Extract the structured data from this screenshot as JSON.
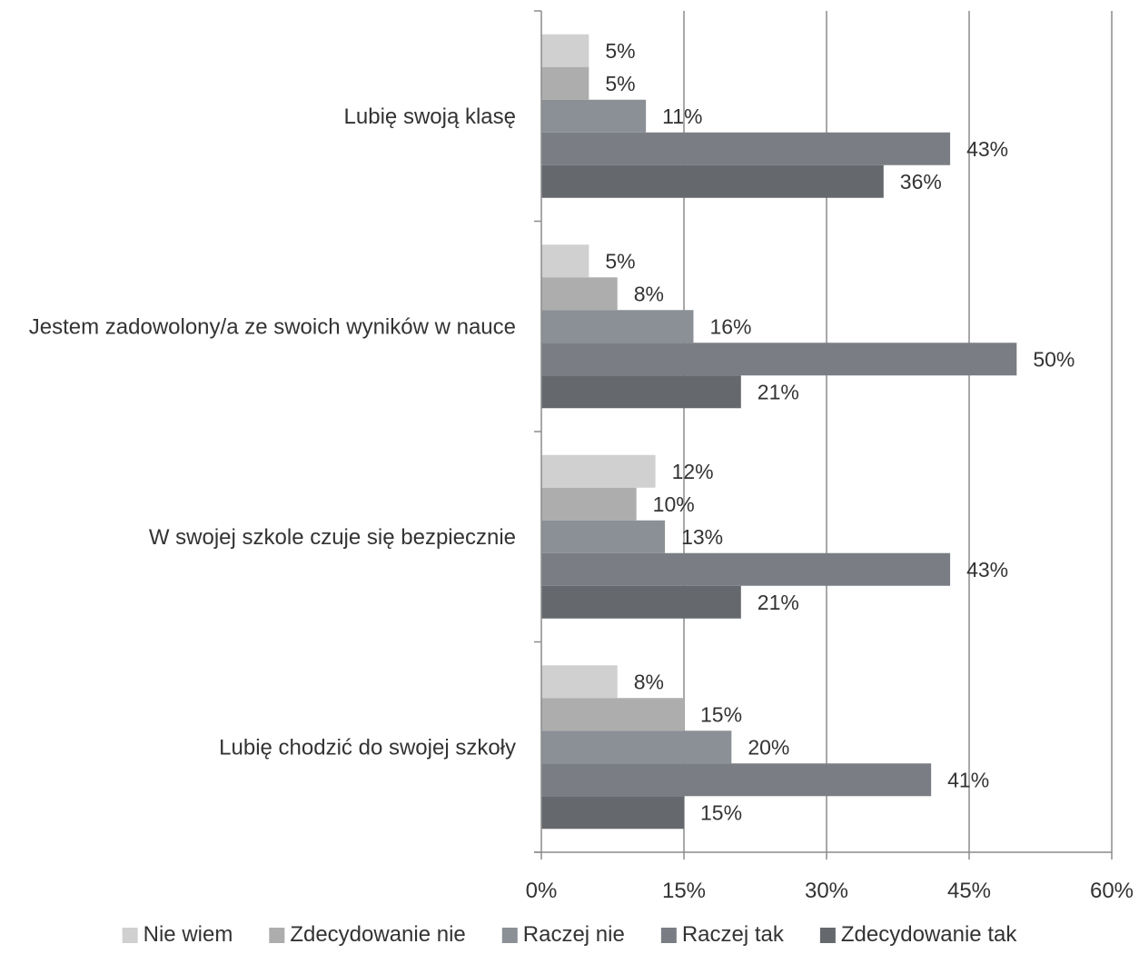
{
  "chart_data": {
    "type": "bar",
    "orientation": "horizontal",
    "categories": [
      "Lubię swoją klasę",
      "Jestem zadowolony/a ze swoich wyników w nauce",
      "W swojej szkole czuje się bezpiecznie",
      "Lubię chodzić do swojej szkoły"
    ],
    "series": [
      {
        "name": "Nie wiem",
        "color": "#d0d0d0",
        "values": [
          5,
          5,
          12,
          8
        ],
        "labels": [
          "5%",
          "5%",
          "12%",
          "8%"
        ]
      },
      {
        "name": "Zdecydowanie nie",
        "color": "#adadad",
        "values": [
          5,
          8,
          10,
          15
        ],
        "labels": [
          "5%",
          "8%",
          "10%",
          "15%"
        ]
      },
      {
        "name": "Raczej nie",
        "color": "#8b9096",
        "values": [
          11,
          16,
          13,
          20
        ],
        "labels": [
          "11%",
          "16%",
          "13%",
          "20%"
        ]
      },
      {
        "name": "Raczej tak",
        "color": "#7a7e84",
        "values": [
          43,
          50,
          43,
          41
        ],
        "labels": [
          "43%",
          "50%",
          "43%",
          "41%"
        ]
      },
      {
        "name": "Zdecydowanie tak",
        "color": "#65696d",
        "values": [
          36,
          21,
          21,
          15
        ],
        "labels": [
          "36%",
          "21%",
          "21%",
          "15%"
        ]
      }
    ],
    "xlim": [
      0,
      60
    ],
    "xticks": [
      0,
      15,
      30,
      45,
      60
    ],
    "xtick_labels": [
      "0%",
      "15%",
      "30%",
      "45%",
      "60%"
    ],
    "grid": true,
    "legend_position": "bottom"
  }
}
